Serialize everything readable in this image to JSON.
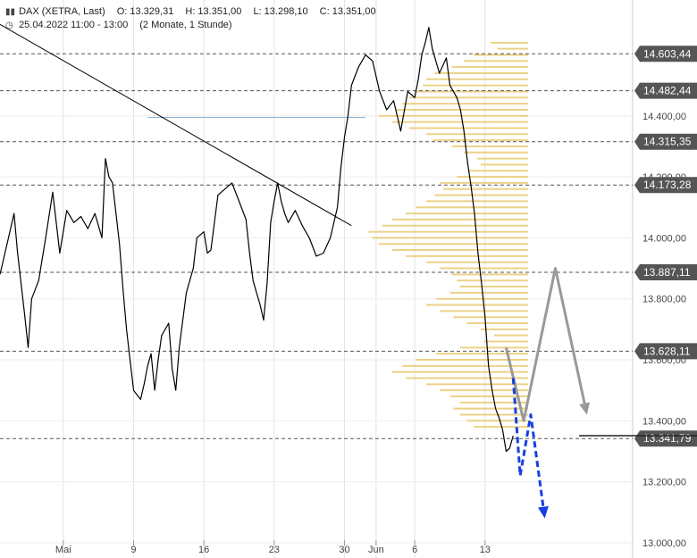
{
  "header": {
    "instrument": "DAX (XETRA, Last)",
    "open": "O: 13.329,31",
    "high": "H: 13.351,00",
    "low": "L: 13.298,10",
    "close": "C: 13.351,00",
    "period": "25.04.2022 11:00 - 13:00",
    "range": "(2 Monate, 1 Stunde)",
    "chart_icon": "ohlc-bars-icon",
    "clock_icon": "clock-icon"
  },
  "colors": {
    "price": "#000000",
    "volume_profile": "#e6c76a",
    "level_line": "#555555",
    "level_label_bg": "#555555",
    "current_price_bg": "#222222",
    "gray_arrow": "#999999",
    "blue_arrow": "#1a3fe0",
    "thin_line": "#8ab4d8"
  },
  "chart_data": {
    "type": "line",
    "title": "DAX (XETRA, Last)",
    "xlabel": "",
    "ylabel": "",
    "ylim": [
      12950,
      14780
    ],
    "y_ticks": [
      13000,
      13200,
      13400,
      13600,
      13800,
      14000,
      14200,
      14400
    ],
    "y_tick_labels": [
      "13.000,00",
      "13.200,00",
      "13.400,00",
      "13.600,00",
      "13.800,00",
      "14.000,00",
      "14.200,00",
      "14.400,00"
    ],
    "x_tick_labels": [
      "Mai",
      "9",
      "16",
      "23",
      "30",
      "Jun",
      "6",
      "13"
    ],
    "x_tick_index": [
      18,
      38,
      58,
      78,
      98,
      107,
      118,
      138
    ],
    "x_index_max": 180,
    "levels": [
      {
        "value": 14603.44,
        "label": "14.603,44"
      },
      {
        "value": 14482.44,
        "label": "14.482,44"
      },
      {
        "value": 14315.35,
        "label": "14.315,35"
      },
      {
        "value": 14173.28,
        "label": "14.173,28"
      },
      {
        "value": 13887.11,
        "label": "13.887,11"
      },
      {
        "value": 13628.11,
        "label": "13.628,11"
      },
      {
        "value": 13341.79,
        "label": "13.341,79"
      }
    ],
    "current_price": {
      "value": 13351.0
    },
    "series": [
      {
        "values": [
          [
            0,
            13880
          ],
          [
            2,
            13980
          ],
          [
            4,
            14080
          ],
          [
            5,
            13950
          ],
          [
            7,
            13750
          ],
          [
            8,
            13640
          ],
          [
            9,
            13800
          ],
          [
            11,
            13860
          ],
          [
            13,
            14000
          ],
          [
            15,
            14150
          ],
          [
            17,
            13950
          ],
          [
            19,
            14090
          ],
          [
            21,
            14050
          ],
          [
            23,
            14070
          ],
          [
            25,
            14030
          ],
          [
            27,
            14080
          ],
          [
            29,
            14000
          ],
          [
            30,
            14260
          ],
          [
            31,
            14200
          ],
          [
            32,
            14180
          ],
          [
            34,
            13980
          ],
          [
            35,
            13830
          ],
          [
            36,
            13700
          ],
          [
            37,
            13600
          ],
          [
            38,
            13500
          ],
          [
            40,
            13470
          ],
          [
            41,
            13520
          ],
          [
            42,
            13580
          ],
          [
            43,
            13620
          ],
          [
            44,
            13500
          ],
          [
            45,
            13600
          ],
          [
            46,
            13680
          ],
          [
            48,
            13720
          ],
          [
            49,
            13570
          ],
          [
            50,
            13500
          ],
          [
            51,
            13640
          ],
          [
            53,
            13820
          ],
          [
            55,
            13900
          ],
          [
            56,
            14000
          ],
          [
            58,
            14020
          ],
          [
            59,
            13950
          ],
          [
            60,
            13960
          ],
          [
            62,
            14140
          ],
          [
            64,
            14160
          ],
          [
            66,
            14180
          ],
          [
            68,
            14120
          ],
          [
            70,
            14060
          ],
          [
            71,
            13950
          ],
          [
            72,
            13860
          ],
          [
            73,
            13820
          ],
          [
            74,
            13780
          ],
          [
            75,
            13730
          ],
          [
            76,
            13850
          ],
          [
            77,
            14050
          ],
          [
            78,
            14120
          ],
          [
            79,
            14180
          ],
          [
            80,
            14120
          ],
          [
            81,
            14080
          ],
          [
            82,
            14050
          ],
          [
            84,
            14090
          ],
          [
            86,
            14040
          ],
          [
            88,
            14000
          ],
          [
            90,
            13940
          ],
          [
            92,
            13950
          ],
          [
            94,
            14000
          ],
          [
            96,
            14100
          ],
          [
            97,
            14230
          ],
          [
            98,
            14330
          ],
          [
            99,
            14400
          ],
          [
            100,
            14500
          ],
          [
            102,
            14560
          ],
          [
            104,
            14600
          ],
          [
            106,
            14580
          ],
          [
            108,
            14480
          ],
          [
            110,
            14420
          ],
          [
            112,
            14450
          ],
          [
            113,
            14400
          ],
          [
            114,
            14350
          ],
          [
            116,
            14480
          ],
          [
            118,
            14460
          ],
          [
            119,
            14520
          ],
          [
            120,
            14600
          ],
          [
            121,
            14640
          ],
          [
            122,
            14690
          ],
          [
            123,
            14620
          ],
          [
            125,
            14540
          ],
          [
            127,
            14590
          ],
          [
            128,
            14500
          ],
          [
            130,
            14460
          ],
          [
            131,
            14420
          ],
          [
            132,
            14350
          ],
          [
            133,
            14250
          ],
          [
            134,
            14170
          ],
          [
            135,
            14080
          ],
          [
            136,
            13950
          ],
          [
            137,
            13850
          ],
          [
            138,
            13740
          ],
          [
            139,
            13580
          ],
          [
            140,
            13500
          ],
          [
            141,
            13440
          ],
          [
            142,
            13410
          ],
          [
            143,
            13370
          ],
          [
            144,
            13300
          ],
          [
            145,
            13310
          ],
          [
            146,
            13351
          ]
        ]
      }
    ],
    "volume_profile": [
      [
        14640,
        0.22
      ],
      [
        14620,
        0.18
      ],
      [
        14600,
        0.32
      ],
      [
        14580,
        0.38
      ],
      [
        14560,
        0.45
      ],
      [
        14540,
        0.55
      ],
      [
        14520,
        0.6
      ],
      [
        14500,
        0.62
      ],
      [
        14480,
        0.66
      ],
      [
        14460,
        0.7
      ],
      [
        14440,
        0.74
      ],
      [
        14420,
        0.78
      ],
      [
        14400,
        0.88
      ],
      [
        14380,
        0.8
      ],
      [
        14360,
        0.7
      ],
      [
        14340,
        0.6
      ],
      [
        14320,
        0.56
      ],
      [
        14300,
        0.45
      ],
      [
        14280,
        0.38
      ],
      [
        14260,
        0.3
      ],
      [
        14240,
        0.28
      ],
      [
        14220,
        0.35
      ],
      [
        14200,
        0.42
      ],
      [
        14180,
        0.52
      ],
      [
        14160,
        0.5
      ],
      [
        14140,
        0.55
      ],
      [
        14120,
        0.6
      ],
      [
        14100,
        0.66
      ],
      [
        14080,
        0.72
      ],
      [
        14060,
        0.8
      ],
      [
        14040,
        0.86
      ],
      [
        14020,
        0.94
      ],
      [
        14000,
        0.92
      ],
      [
        13980,
        0.88
      ],
      [
        13960,
        0.8
      ],
      [
        13940,
        0.72
      ],
      [
        13920,
        0.6
      ],
      [
        13900,
        0.52
      ],
      [
        13880,
        0.45
      ],
      [
        13860,
        0.42
      ],
      [
        13840,
        0.4
      ],
      [
        13820,
        0.46
      ],
      [
        13800,
        0.54
      ],
      [
        13780,
        0.6
      ],
      [
        13760,
        0.52
      ],
      [
        13740,
        0.44
      ],
      [
        13720,
        0.36
      ],
      [
        13700,
        0.28
      ],
      [
        13680,
        0.2
      ],
      [
        13660,
        0.26
      ],
      [
        13640,
        0.4
      ],
      [
        13620,
        0.54
      ],
      [
        13600,
        0.66
      ],
      [
        13580,
        0.74
      ],
      [
        13560,
        0.8
      ],
      [
        13540,
        0.72
      ],
      [
        13520,
        0.6
      ],
      [
        13500,
        0.52
      ],
      [
        13480,
        0.46
      ],
      [
        13460,
        0.4
      ],
      [
        13440,
        0.44
      ],
      [
        13420,
        0.4
      ],
      [
        13400,
        0.36
      ],
      [
        13380,
        0.32
      ]
    ],
    "trendline": [
      [
        0,
        14700
      ],
      [
        100,
        14040
      ]
    ],
    "thin_line": {
      "y": 14395,
      "x_from": 42,
      "x_to": 104
    },
    "gray_arrow": [
      [
        144,
        13640
      ],
      [
        149,
        13400
      ],
      [
        158,
        13900
      ],
      [
        167,
        13420
      ]
    ],
    "blue_arrow": [
      [
        146,
        13540
      ],
      [
        148,
        13220
      ],
      [
        151,
        13420
      ],
      [
        155,
        13080
      ]
    ]
  }
}
